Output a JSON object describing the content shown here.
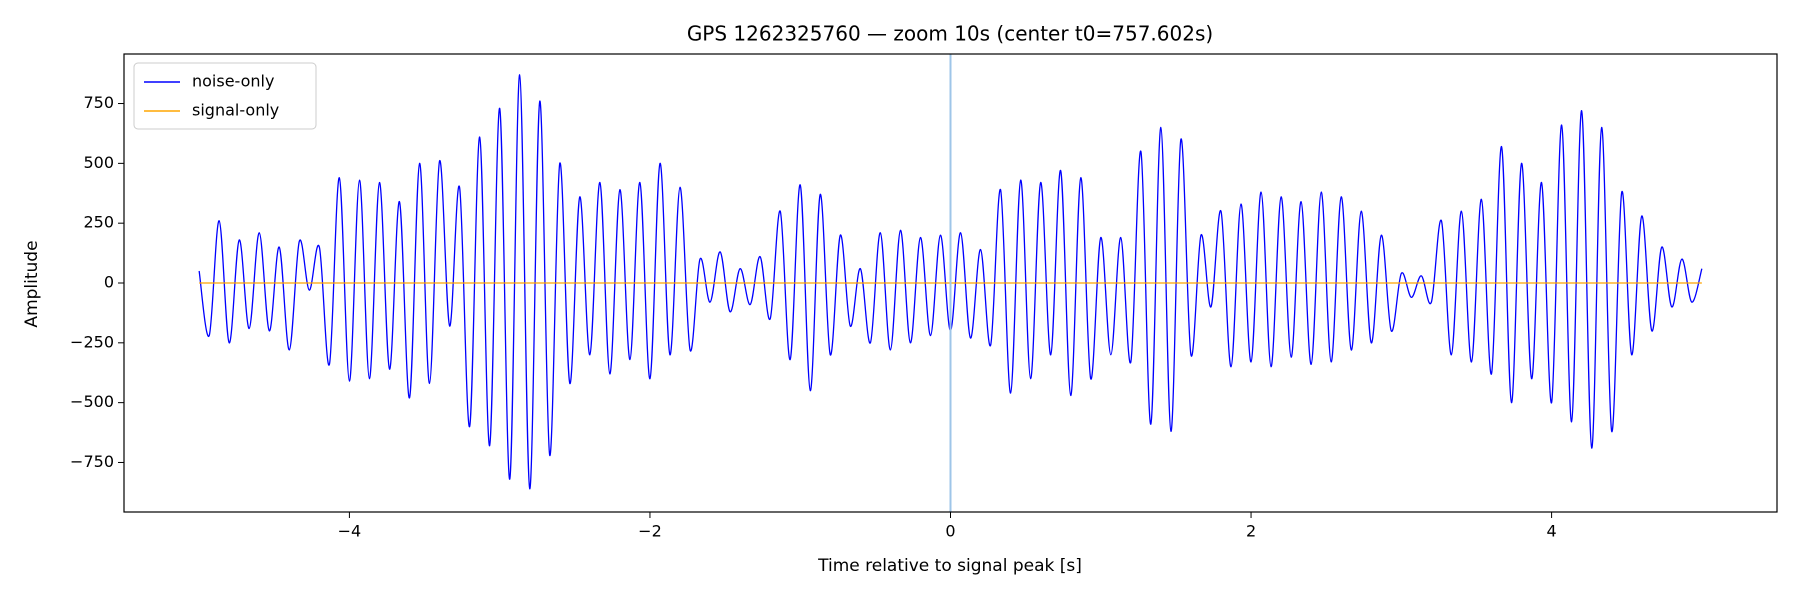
{
  "chart_data": {
    "type": "line",
    "title": "GPS 1262325760 — zoom 10s (center t0=757.602s)",
    "x_label": "Time relative to signal peak [s]",
    "y_label": "Amplitude",
    "xlim": [
      -5.5,
      5.5
    ],
    "xticks": [
      {
        "value": -4,
        "label": "−4"
      },
      {
        "value": -2,
        "label": "−2"
      },
      0,
      2,
      4
    ],
    "ylim": [
      -957,
      957
    ],
    "yticks": [
      {
        "value": -750,
        "label": "−750"
      },
      {
        "value": -500,
        "label": "−500"
      },
      {
        "value": -250,
        "label": "−250"
      },
      0,
      250,
      500,
      750
    ],
    "legend": "upper left",
    "vline": {
      "x": 0,
      "color": "#9ec5e8"
    },
    "series": [
      {
        "name": "noise-only",
        "color": "#0000ff",
        "x": [
          -5,
          -4.933,
          -4.867,
          -4.8,
          -4.733,
          -4.667,
          -4.6,
          -4.533,
          -4.467,
          -4.4,
          -4.333,
          -4.267,
          -4.2,
          -4.133,
          -4.067,
          -4,
          -3.933,
          -3.867,
          -3.8,
          -3.733,
          -3.667,
          -3.6,
          -3.533,
          -3.467,
          -3.4,
          -3.333,
          -3.267,
          -3.2,
          -3.133,
          -3.067,
          -3,
          -2.933,
          -2.867,
          -2.8,
          -2.733,
          -2.667,
          -2.6,
          -2.533,
          -2.467,
          -2.4,
          -2.333,
          -2.267,
          -2.2,
          -2.133,
          -2.067,
          -2,
          -1.933,
          -1.867,
          -1.8,
          -1.733,
          -1.667,
          -1.6,
          -1.533,
          -1.467,
          -1.4,
          -1.333,
          -1.267,
          -1.2,
          -1.133,
          -1.067,
          -1,
          -0.933,
          -0.867,
          -0.8,
          -0.733,
          -0.667,
          -0.6,
          -0.533,
          -0.467,
          -0.4,
          -0.333,
          -0.267,
          -0.2,
          -0.133,
          -0.067,
          0,
          0.067,
          0.133,
          0.2,
          0.267,
          0.333,
          0.4,
          0.467,
          0.533,
          0.6,
          0.667,
          0.733,
          0.8,
          0.867,
          0.933,
          1,
          1.067,
          1.133,
          1.2,
          1.267,
          1.333,
          1.4,
          1.467,
          1.533,
          1.6,
          1.667,
          1.733,
          1.8,
          1.867,
          1.933,
          2,
          2.067,
          2.133,
          2.2,
          2.267,
          2.333,
          2.4,
          2.467,
          2.533,
          2.6,
          2.667,
          2.733,
          2.8,
          2.867,
          2.933,
          3,
          3.067,
          3.133,
          3.2,
          3.267,
          3.333,
          3.4,
          3.467,
          3.533,
          3.6,
          3.667,
          3.733,
          3.8,
          3.867,
          3.933,
          4,
          4.067,
          4.133,
          4.2,
          4.267,
          4.333,
          4.4,
          4.467,
          4.533,
          4.6,
          4.667,
          4.733,
          4.8,
          4.867,
          4.933,
          5
        ],
        "values": [
          50,
          -220,
          260,
          -250,
          180,
          -190,
          210,
          -200,
          150,
          -280,
          175,
          -30,
          150,
          -340,
          440,
          -410,
          430,
          -400,
          420,
          -360,
          340,
          -480,
          500,
          -420,
          510,
          -180,
          400,
          -600,
          610,
          -680,
          730,
          -820,
          870,
          -860,
          760,
          -720,
          500,
          -420,
          360,
          -300,
          420,
          -380,
          390,
          -320,
          420,
          -400,
          500,
          -300,
          400,
          -280,
          100,
          -80,
          130,
          -120,
          60,
          -90,
          110,
          -150,
          300,
          -320,
          410,
          -450,
          370,
          -300,
          200,
          -180,
          60,
          -250,
          210,
          -280,
          220,
          -250,
          190,
          -220,
          200,
          -200,
          210,
          -230,
          140,
          -260,
          390,
          -460,
          430,
          -400,
          420,
          -300,
          470,
          -470,
          440,
          -400,
          190,
          -300,
          190,
          -330,
          550,
          -590,
          650,
          -620,
          600,
          -300,
          200,
          -100,
          300,
          -350,
          330,
          -330,
          380,
          -350,
          360,
          -310,
          340,
          -340,
          380,
          -330,
          360,
          -280,
          300,
          -250,
          200,
          -200,
          40,
          -60,
          30,
          -80,
          260,
          -300,
          300,
          -330,
          350,
          -380,
          570,
          -500,
          500,
          -400,
          420,
          -500,
          660,
          -580,
          720,
          -690,
          650,
          -620,
          380,
          -300,
          280,
          -200,
          150,
          -100,
          100,
          -80,
          60
        ]
      },
      {
        "name": "signal-only",
        "color": "#ffa500",
        "x": [
          -5,
          5
        ],
        "values": [
          0,
          0
        ]
      }
    ]
  }
}
